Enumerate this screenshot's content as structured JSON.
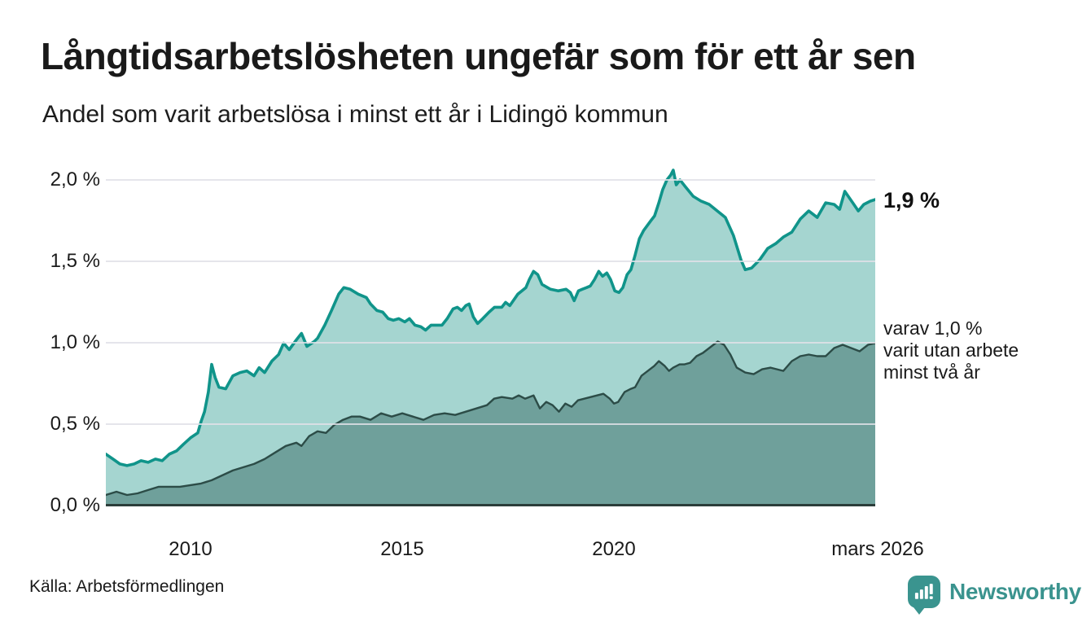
{
  "header": {
    "title": "Långtidsarbetslösheten ungefär som för ett år sen",
    "subtitle": "Andel som varit arbetslösa i minst ett år i Lidingö kommun"
  },
  "footer": {
    "source": "Källa: Arbetsförmedlingen",
    "brand": "Newsworthy",
    "brand_color": "#3a938e"
  },
  "annotations": {
    "series1_end_label": "1,9 %",
    "series2_line1": "varav 1,0 %",
    "series2_line2": "varit utan arbete",
    "series2_line3": "minst två år"
  },
  "chart_data": {
    "type": "area",
    "title": "Långtidsarbetslösheten ungefär som för ett år sen",
    "subtitle": "Andel som varit arbetslösa i minst ett år i Lidingö kommun",
    "grid": true,
    "x_axis": {
      "min": 2008,
      "max": 2026.17,
      "ticks": [
        "2010",
        "2015",
        "2020",
        "mars 2026"
      ],
      "tick_years": [
        2010,
        2015,
        2020,
        2026.17
      ]
    },
    "y_axis": {
      "min": 0,
      "max": 2.0,
      "unit": "%",
      "ticks": [
        "2,0 %",
        "1,5 %",
        "1,0 %",
        "0,5 %",
        "0,0 %"
      ],
      "tick_values": [
        2.0,
        1.5,
        1.0,
        0.5,
        0.0
      ]
    },
    "series": [
      {
        "name": "Andel arbetslösa minst ett år",
        "end_value_label": "1,9 %",
        "line_color": "#10948a",
        "fill_color": "#a5d5d0",
        "points": [
          [
            2008.0,
            0.32
          ],
          [
            2008.17,
            0.29
          ],
          [
            2008.33,
            0.26
          ],
          [
            2008.5,
            0.25
          ],
          [
            2008.67,
            0.26
          ],
          [
            2008.83,
            0.28
          ],
          [
            2009.0,
            0.27
          ],
          [
            2009.17,
            0.29
          ],
          [
            2009.33,
            0.28
          ],
          [
            2009.5,
            0.32
          ],
          [
            2009.67,
            0.34
          ],
          [
            2009.83,
            0.38
          ],
          [
            2010.0,
            0.42
          ],
          [
            2010.17,
            0.45
          ],
          [
            2010.25,
            0.52
          ],
          [
            2010.33,
            0.58
          ],
          [
            2010.42,
            0.7
          ],
          [
            2010.5,
            0.87
          ],
          [
            2010.58,
            0.79
          ],
          [
            2010.67,
            0.73
          ],
          [
            2010.83,
            0.72
          ],
          [
            2011.0,
            0.8
          ],
          [
            2011.17,
            0.82
          ],
          [
            2011.33,
            0.83
          ],
          [
            2011.5,
            0.8
          ],
          [
            2011.62,
            0.85
          ],
          [
            2011.75,
            0.82
          ],
          [
            2011.92,
            0.89
          ],
          [
            2012.08,
            0.93
          ],
          [
            2012.2,
            1.0
          ],
          [
            2012.33,
            0.96
          ],
          [
            2012.5,
            1.02
          ],
          [
            2012.62,
            1.06
          ],
          [
            2012.75,
            0.98
          ],
          [
            2012.92,
            1.01
          ],
          [
            2013.0,
            1.03
          ],
          [
            2013.17,
            1.11
          ],
          [
            2013.33,
            1.2
          ],
          [
            2013.5,
            1.3
          ],
          [
            2013.62,
            1.34
          ],
          [
            2013.77,
            1.33
          ],
          [
            2013.96,
            1.3
          ],
          [
            2014.15,
            1.28
          ],
          [
            2014.25,
            1.24
          ],
          [
            2014.4,
            1.2
          ],
          [
            2014.54,
            1.19
          ],
          [
            2014.67,
            1.15
          ],
          [
            2014.79,
            1.14
          ],
          [
            2014.92,
            1.15
          ],
          [
            2015.06,
            1.13
          ],
          [
            2015.17,
            1.15
          ],
          [
            2015.3,
            1.11
          ],
          [
            2015.44,
            1.1
          ],
          [
            2015.55,
            1.08
          ],
          [
            2015.68,
            1.11
          ],
          [
            2015.82,
            1.11
          ],
          [
            2015.94,
            1.11
          ],
          [
            2016.06,
            1.15
          ],
          [
            2016.2,
            1.21
          ],
          [
            2016.3,
            1.22
          ],
          [
            2016.4,
            1.2
          ],
          [
            2016.5,
            1.23
          ],
          [
            2016.58,
            1.24
          ],
          [
            2016.68,
            1.16
          ],
          [
            2016.78,
            1.12
          ],
          [
            2016.9,
            1.15
          ],
          [
            2017.05,
            1.19
          ],
          [
            2017.18,
            1.22
          ],
          [
            2017.35,
            1.22
          ],
          [
            2017.44,
            1.25
          ],
          [
            2017.54,
            1.23
          ],
          [
            2017.73,
            1.3
          ],
          [
            2017.92,
            1.34
          ],
          [
            2018.0,
            1.39
          ],
          [
            2018.1,
            1.44
          ],
          [
            2018.2,
            1.42
          ],
          [
            2018.3,
            1.36
          ],
          [
            2018.5,
            1.33
          ],
          [
            2018.68,
            1.32
          ],
          [
            2018.87,
            1.33
          ],
          [
            2018.97,
            1.31
          ],
          [
            2019.06,
            1.26
          ],
          [
            2019.16,
            1.32
          ],
          [
            2019.25,
            1.33
          ],
          [
            2019.35,
            1.34
          ],
          [
            2019.44,
            1.35
          ],
          [
            2019.54,
            1.39
          ],
          [
            2019.64,
            1.44
          ],
          [
            2019.73,
            1.41
          ],
          [
            2019.83,
            1.43
          ],
          [
            2019.92,
            1.39
          ],
          [
            2020.02,
            1.32
          ],
          [
            2020.12,
            1.31
          ],
          [
            2020.21,
            1.34
          ],
          [
            2020.31,
            1.42
          ],
          [
            2020.4,
            1.45
          ],
          [
            2020.5,
            1.54
          ],
          [
            2020.6,
            1.64
          ],
          [
            2020.7,
            1.69
          ],
          [
            2020.87,
            1.75
          ],
          [
            2020.96,
            1.78
          ],
          [
            2021.06,
            1.86
          ],
          [
            2021.15,
            1.94
          ],
          [
            2021.25,
            2.0
          ],
          [
            2021.34,
            2.03
          ],
          [
            2021.4,
            2.06
          ],
          [
            2021.47,
            1.97
          ],
          [
            2021.56,
            2.0
          ],
          [
            2021.68,
            1.96
          ],
          [
            2021.87,
            1.9
          ],
          [
            2022.06,
            1.87
          ],
          [
            2022.25,
            1.85
          ],
          [
            2022.44,
            1.81
          ],
          [
            2022.63,
            1.77
          ],
          [
            2022.82,
            1.66
          ],
          [
            2023.0,
            1.51
          ],
          [
            2023.1,
            1.45
          ],
          [
            2023.25,
            1.46
          ],
          [
            2023.44,
            1.51
          ],
          [
            2023.63,
            1.58
          ],
          [
            2023.82,
            1.61
          ],
          [
            2024.0,
            1.65
          ],
          [
            2024.2,
            1.68
          ],
          [
            2024.4,
            1.76
          ],
          [
            2024.6,
            1.81
          ],
          [
            2024.8,
            1.77
          ],
          [
            2025.0,
            1.86
          ],
          [
            2025.2,
            1.85
          ],
          [
            2025.33,
            1.82
          ],
          [
            2025.45,
            1.93
          ],
          [
            2025.64,
            1.86
          ],
          [
            2025.77,
            1.81
          ],
          [
            2025.9,
            1.85
          ],
          [
            2026.05,
            1.87
          ],
          [
            2026.17,
            1.88
          ]
        ]
      },
      {
        "name": "varav utan arbete minst två år",
        "end_value_label": "varav 1,0 % varit utan arbete minst två år",
        "line_color": "#2c4c47",
        "fill_color": "#6fa09b",
        "points": [
          [
            2008.0,
            0.07
          ],
          [
            2008.25,
            0.09
          ],
          [
            2008.5,
            0.07
          ],
          [
            2008.75,
            0.08
          ],
          [
            2009.0,
            0.1
          ],
          [
            2009.25,
            0.12
          ],
          [
            2009.5,
            0.12
          ],
          [
            2009.75,
            0.12
          ],
          [
            2010.0,
            0.13
          ],
          [
            2010.25,
            0.14
          ],
          [
            2010.5,
            0.16
          ],
          [
            2010.75,
            0.19
          ],
          [
            2011.0,
            0.22
          ],
          [
            2011.25,
            0.24
          ],
          [
            2011.5,
            0.26
          ],
          [
            2011.75,
            0.29
          ],
          [
            2012.0,
            0.33
          ],
          [
            2012.25,
            0.37
          ],
          [
            2012.5,
            0.39
          ],
          [
            2012.62,
            0.37
          ],
          [
            2012.8,
            0.43
          ],
          [
            2013.0,
            0.46
          ],
          [
            2013.2,
            0.45
          ],
          [
            2013.4,
            0.5
          ],
          [
            2013.6,
            0.53
          ],
          [
            2013.8,
            0.55
          ],
          [
            2014.0,
            0.55
          ],
          [
            2014.25,
            0.53
          ],
          [
            2014.5,
            0.57
          ],
          [
            2014.75,
            0.55
          ],
          [
            2015.0,
            0.57
          ],
          [
            2015.25,
            0.55
          ],
          [
            2015.5,
            0.53
          ],
          [
            2015.75,
            0.56
          ],
          [
            2016.0,
            0.57
          ],
          [
            2016.25,
            0.56
          ],
          [
            2016.5,
            0.58
          ],
          [
            2016.75,
            0.6
          ],
          [
            2017.0,
            0.62
          ],
          [
            2017.17,
            0.66
          ],
          [
            2017.35,
            0.67
          ],
          [
            2017.6,
            0.66
          ],
          [
            2017.75,
            0.68
          ],
          [
            2017.9,
            0.66
          ],
          [
            2018.1,
            0.68
          ],
          [
            2018.25,
            0.6
          ],
          [
            2018.4,
            0.64
          ],
          [
            2018.55,
            0.62
          ],
          [
            2018.7,
            0.58
          ],
          [
            2018.85,
            0.63
          ],
          [
            2019.0,
            0.61
          ],
          [
            2019.15,
            0.65
          ],
          [
            2019.3,
            0.66
          ],
          [
            2019.45,
            0.67
          ],
          [
            2019.6,
            0.68
          ],
          [
            2019.75,
            0.69
          ],
          [
            2019.9,
            0.66
          ],
          [
            2020.0,
            0.63
          ],
          [
            2020.1,
            0.64
          ],
          [
            2020.25,
            0.7
          ],
          [
            2020.4,
            0.72
          ],
          [
            2020.5,
            0.73
          ],
          [
            2020.65,
            0.8
          ],
          [
            2020.8,
            0.83
          ],
          [
            2020.95,
            0.86
          ],
          [
            2021.06,
            0.89
          ],
          [
            2021.2,
            0.86
          ],
          [
            2021.3,
            0.83
          ],
          [
            2021.4,
            0.85
          ],
          [
            2021.55,
            0.87
          ],
          [
            2021.66,
            0.87
          ],
          [
            2021.8,
            0.88
          ],
          [
            2021.95,
            0.92
          ],
          [
            2022.1,
            0.94
          ],
          [
            2022.25,
            0.97
          ],
          [
            2022.45,
            1.01
          ],
          [
            2022.6,
            0.99
          ],
          [
            2022.75,
            0.93
          ],
          [
            2022.9,
            0.85
          ],
          [
            2023.1,
            0.82
          ],
          [
            2023.3,
            0.81
          ],
          [
            2023.5,
            0.84
          ],
          [
            2023.7,
            0.85
          ],
          [
            2023.85,
            0.84
          ],
          [
            2024.0,
            0.83
          ],
          [
            2024.2,
            0.89
          ],
          [
            2024.4,
            0.92
          ],
          [
            2024.6,
            0.93
          ],
          [
            2024.8,
            0.92
          ],
          [
            2025.0,
            0.92
          ],
          [
            2025.2,
            0.97
          ],
          [
            2025.4,
            0.99
          ],
          [
            2025.6,
            0.97
          ],
          [
            2025.8,
            0.95
          ],
          [
            2026.0,
            0.99
          ],
          [
            2026.17,
            1.0
          ]
        ]
      }
    ]
  }
}
